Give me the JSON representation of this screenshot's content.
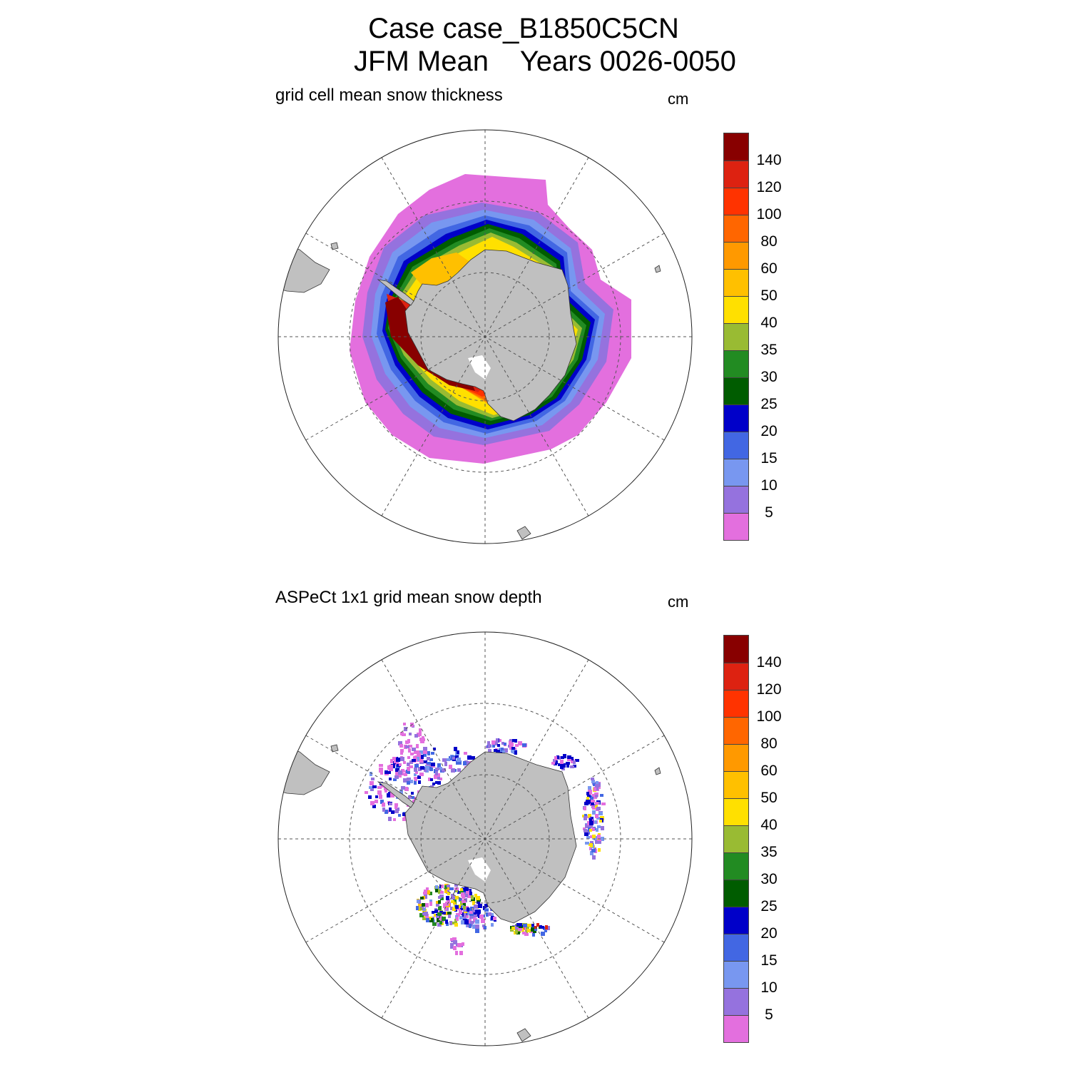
{
  "title": {
    "line1": "Case case_B1850C5CN",
    "line2": "JFM Mean    Years 0026-0050"
  },
  "panels": [
    {
      "left_string": "grid cell mean snow thickness",
      "units": "cm",
      "colorbar": {
        "levels": [
          "5",
          "10",
          "15",
          "20",
          "25",
          "30",
          "35",
          "40",
          "50",
          "60",
          "80",
          "100",
          "120",
          "140"
        ],
        "colors": [
          "#e36fde",
          "#9572de",
          "#7897f0",
          "#4267e3",
          "#0000c9",
          "#005c00",
          "#228b22",
          "#99bb33",
          "#ffe000",
          "#ffc000",
          "#ff9900",
          "#ff6600",
          "#ff3300",
          "#dd2211",
          "#880000"
        ]
      }
    },
    {
      "left_string": "ASPeCt 1x1 grid mean snow depth",
      "units": "cm",
      "colorbar": {
        "levels": [
          "5",
          "10",
          "15",
          "20",
          "25",
          "30",
          "35",
          "40",
          "50",
          "60",
          "80",
          "100",
          "120",
          "140"
        ],
        "colors": [
          "#e36fde",
          "#9572de",
          "#7897f0",
          "#4267e3",
          "#0000c9",
          "#005c00",
          "#228b22",
          "#99bb33",
          "#ffe000",
          "#ffc000",
          "#ff9900",
          "#ff6600",
          "#ff3300",
          "#dd2211",
          "#880000"
        ]
      }
    }
  ],
  "map_style": {
    "land_color": "#c0c0c0",
    "grid_line_color": "#555555",
    "projection": "south polar stereographic"
  }
}
